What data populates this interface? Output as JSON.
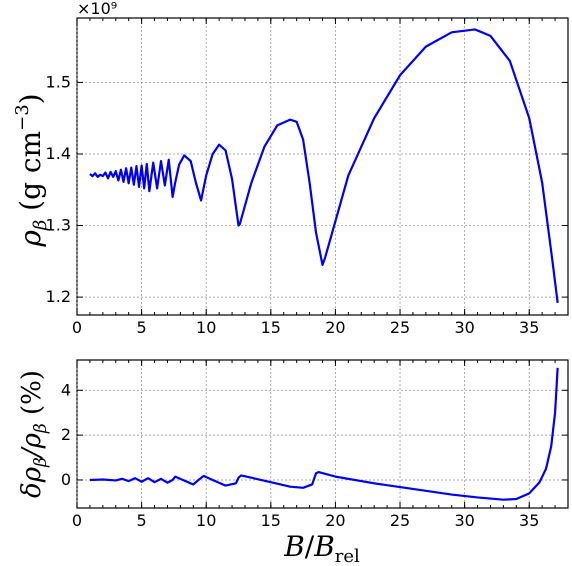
{
  "chart_data": [
    {
      "type": "line",
      "panel": "top",
      "offset_label": "×10⁹",
      "ylabel": "ρ_β (g cm⁻³)",
      "xlim": [
        0,
        38
      ],
      "ylim": [
        1.175,
        1.59
      ],
      "xticks": [
        0,
        5,
        10,
        15,
        20,
        25,
        30,
        35
      ],
      "yticks": [
        1.2,
        1.3,
        1.4,
        1.5
      ],
      "ytick_labels": [
        "1.2",
        "1.3",
        "1.4",
        "1.5"
      ],
      "grid": true,
      "color": "#0000ee",
      "series": [
        {
          "x": [
            1.0,
            1.2,
            1.4,
            1.6,
            1.8,
            2.0,
            2.2,
            2.4,
            2.6,
            2.8,
            3.0,
            3.2,
            3.4,
            3.6,
            3.8,
            4.0,
            4.2,
            4.4,
            4.6,
            4.8,
            5.0,
            5.2,
            5.4,
            5.6,
            5.9,
            6.2,
            6.5,
            6.8,
            7.1,
            7.4,
            7.6,
            7.9,
            8.3,
            8.8,
            9.2,
            9.6,
            10.0,
            10.5,
            11.0,
            11.5,
            12.0,
            12.5,
            12.6,
            13.5,
            14.5,
            15.5,
            16.5,
            17.0,
            17.5,
            18.0,
            18.5,
            19.0,
            19.2,
            21.0,
            23.0,
            25.0,
            27.0,
            29.0,
            30.8,
            32.0,
            33.5,
            35.0,
            36.0,
            36.8,
            37.2
          ],
          "y": [
            1.372,
            1.369,
            1.373,
            1.368,
            1.371,
            1.369,
            1.374,
            1.366,
            1.375,
            1.368,
            1.376,
            1.363,
            1.378,
            1.361,
            1.38,
            1.359,
            1.381,
            1.357,
            1.383,
            1.354,
            1.384,
            1.352,
            1.386,
            1.348,
            1.388,
            1.352,
            1.39,
            1.356,
            1.392,
            1.34,
            1.36,
            1.385,
            1.398,
            1.39,
            1.36,
            1.335,
            1.37,
            1.4,
            1.413,
            1.405,
            1.365,
            1.3,
            1.302,
            1.36,
            1.41,
            1.44,
            1.448,
            1.445,
            1.42,
            1.36,
            1.29,
            1.245,
            1.255,
            1.37,
            1.45,
            1.51,
            1.55,
            1.57,
            1.574,
            1.565,
            1.53,
            1.45,
            1.36,
            1.25,
            1.192
          ]
        }
      ]
    },
    {
      "type": "line",
      "panel": "bottom",
      "xlabel": "B/B_rel",
      "ylabel": "δρ_β/ρ_β (%)",
      "xlim": [
        0,
        38
      ],
      "ylim": [
        -1.25,
        5.35
      ],
      "xticks": [
        0,
        5,
        10,
        15,
        20,
        25,
        30,
        35
      ],
      "yticks": [
        0,
        2,
        4
      ],
      "ytick_labels": [
        "0",
        "2",
        "4"
      ],
      "grid": true,
      "color": "#0000ee",
      "series": [
        {
          "x": [
            1.0,
            2.0,
            3.0,
            3.5,
            4.0,
            4.5,
            5.0,
            5.5,
            6.0,
            6.5,
            7.0,
            7.4,
            7.6,
            8.0,
            9.0,
            9.4,
            9.8,
            10.5,
            11.5,
            12.3,
            12.5,
            12.7,
            13.5,
            15.0,
            16.5,
            17.5,
            18.2,
            18.5,
            18.7,
            20.0,
            23.0,
            26.0,
            29.0,
            31.0,
            33.0,
            34.0,
            35.0,
            35.8,
            36.3,
            36.7,
            37.0,
            37.2
          ],
          "y": [
            0.0,
            0.02,
            -0.02,
            0.05,
            -0.05,
            0.08,
            -0.08,
            0.08,
            -0.1,
            0.05,
            -0.12,
            0.0,
            0.15,
            0.05,
            -0.2,
            0.0,
            0.18,
            0.0,
            -0.25,
            -0.15,
            0.1,
            0.2,
            0.1,
            -0.1,
            -0.3,
            -0.35,
            -0.2,
            0.3,
            0.35,
            0.15,
            -0.15,
            -0.4,
            -0.65,
            -0.78,
            -0.88,
            -0.85,
            -0.6,
            -0.1,
            0.5,
            1.5,
            3.0,
            5.0
          ]
        }
      ]
    }
  ]
}
